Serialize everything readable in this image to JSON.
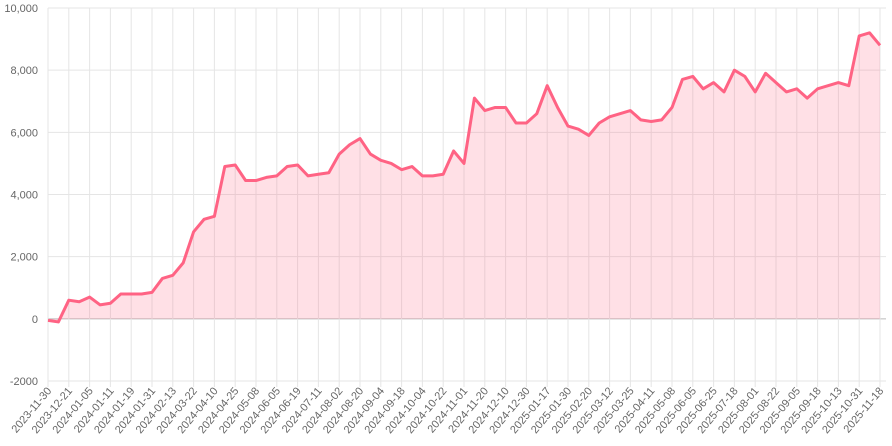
{
  "chart_data": {
    "type": "line",
    "categories": [
      "2023-11-30",
      null,
      "2023-12-21",
      null,
      "2024-01-05",
      null,
      "2024-01-11",
      null,
      "2024-01-19",
      null,
      "2024-01-31",
      null,
      "2024-02-13",
      null,
      "2024-03-22",
      null,
      "2024-04-10",
      null,
      "2024-04-25",
      null,
      "2024-05-08",
      null,
      "2024-06-05",
      null,
      "2024-06-19",
      null,
      "2024-07-11",
      null,
      "2024-08-02",
      null,
      "2024-08-20",
      null,
      "2024-09-04",
      null,
      "2024-09-18",
      null,
      "2024-10-04",
      null,
      "2024-10-22",
      null,
      "2024-11-01",
      null,
      "2024-11-20",
      null,
      "2024-12-10",
      null,
      "2024-12-30",
      null,
      "2025-01-17",
      null,
      "2025-01-30",
      null,
      "2025-02-20",
      null,
      "2025-03-12",
      null,
      "2025-03-25",
      null,
      "2025-04-11",
      null,
      "2025-05-08",
      null,
      "2025-06-05",
      null,
      "2025-06-25",
      null,
      "2025-07-18",
      null,
      "2025-08-01",
      null,
      "2025-08-22",
      null,
      "2025-09-05",
      null,
      "2025-09-18",
      null,
      "2025-10-13",
      null,
      "2025-10-31",
      null,
      "2025-11-18"
    ],
    "series": [
      {
        "color": "#ff6384",
        "fill": "rgba(255,99,132,0.2)",
        "values": [
          -50,
          -100,
          600,
          550,
          700,
          450,
          500,
          800,
          800,
          800,
          850,
          1300,
          1400,
          1800,
          2800,
          3200,
          3300,
          4900,
          4950,
          4450,
          4450,
          4550,
          4600,
          4900,
          4950,
          4600,
          4650,
          4700,
          5300,
          5600,
          5800,
          5300,
          5100,
          5000,
          4800,
          4900,
          4600,
          4600,
          4650,
          5400,
          5000,
          7100,
          6700,
          6800,
          6800,
          6300,
          6300,
          6600,
          7500,
          6800,
          6200,
          6100,
          5900,
          6300,
          6500,
          6600,
          6700,
          6400,
          6350,
          6400,
          6800,
          7700,
          7800,
          7400,
          7600,
          7300,
          8000,
          7800,
          7300,
          7900,
          7600,
          7300,
          7400,
          7100,
          7400,
          7500,
          7600,
          7500,
          9100,
          9200,
          8800
        ]
      }
    ],
    "ylim": [
      -2000,
      10000
    ],
    "yticks": [
      -2000,
      {
        "value": -2000,
        "label": "-2,000"
      },
      0,
      {
        "value": 2000,
        "label": "2,000"
      },
      {
        "value": 4000,
        "label": "4,000"
      },
      {
        "value": 6000,
        "label": "6,000"
      },
      {
        "value": 8000,
        "label": "8,000"
      },
      {
        "value": 10000,
        "label": "10,000"
      }
    ],
    "grid": true
  }
}
